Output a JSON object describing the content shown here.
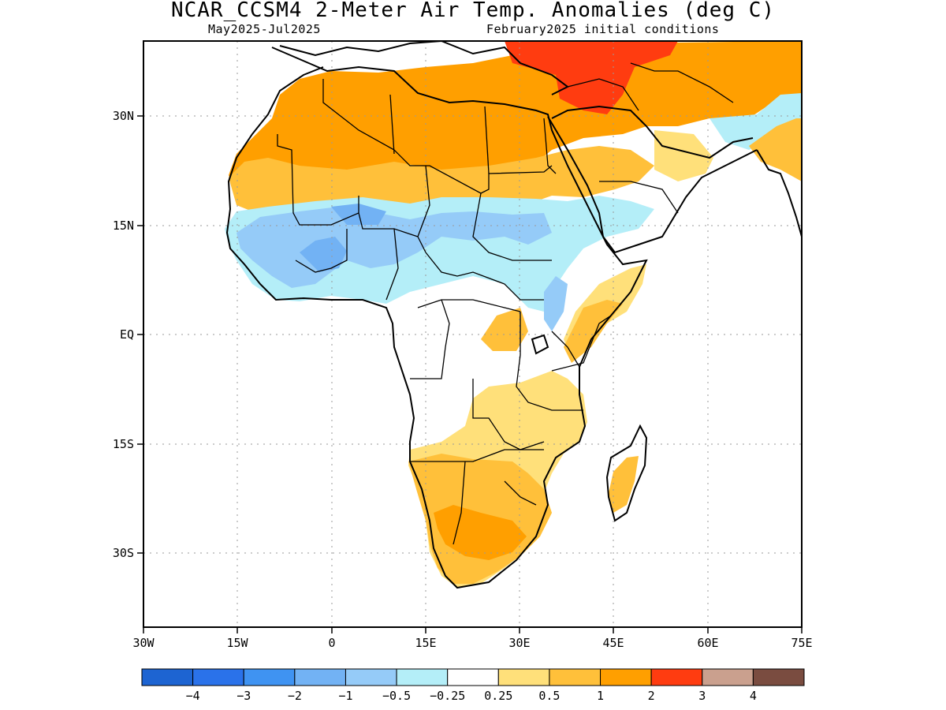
{
  "title": "NCAR_CCSM4 2-Meter Air Temp. Anomalies (deg C)",
  "subtitle_left": "May2025-Jul2025",
  "subtitle_right": "February2025 initial conditions",
  "map": {
    "lon_range": [
      -30,
      75
    ],
    "lat_range": [
      -47,
      46
    ],
    "x_ticks": [
      {
        "value": -30,
        "label": "30W"
      },
      {
        "value": -15,
        "label": "15W"
      },
      {
        "value": 0,
        "label": "0"
      },
      {
        "value": 15,
        "label": "15E"
      },
      {
        "value": 30,
        "label": "30E"
      },
      {
        "value": 45,
        "label": "45E"
      },
      {
        "value": 60,
        "label": "60E"
      },
      {
        "value": 75,
        "label": "75E"
      }
    ],
    "y_ticks": [
      {
        "value": 30,
        "label": "30N"
      },
      {
        "value": 15,
        "label": "15N"
      },
      {
        "value": 0,
        "label": "EQ"
      },
      {
        "value": -15,
        "label": "15S"
      },
      {
        "value": -30,
        "label": "30S"
      }
    ],
    "grid": "dotted"
  },
  "colorbar": {
    "colors": [
      "#1d64d2",
      "#2a72ea",
      "#3f93f2",
      "#72b2f4",
      "#95cbf8",
      "#b4eef8",
      "#ffffff",
      "#ffe07a",
      "#ffc03a",
      "#ff9f00",
      "#ff3c10",
      "#caa08e",
      "#7a4c40"
    ],
    "labels": [
      "-4",
      "-3",
      "-2",
      "-1",
      "-0.5",
      "-0.25",
      "0.25",
      "0.5",
      "1",
      "2",
      "3",
      "4"
    ]
  }
}
